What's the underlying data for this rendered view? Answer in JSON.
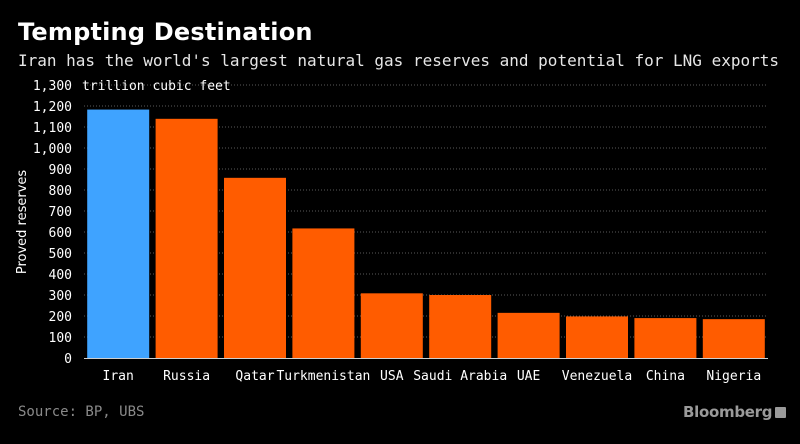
{
  "header": {
    "title": "Tempting Destination",
    "subtitle": "Iran has the world's largest natural gas reserves and potential for LNG exports"
  },
  "footer": {
    "source": "Source: BP, UBS",
    "brand": "Bloomberg"
  },
  "colors": {
    "highlight": "#3fa3ff",
    "bar": "#ff5c00",
    "grid": "#5a5a5a",
    "background": "#000000"
  },
  "chart_data": {
    "type": "bar",
    "ylabel": "Proved reserves",
    "unit_label": "trillion cubic feet",
    "ylim": [
      0,
      1300
    ],
    "yticks": [
      0,
      100,
      200,
      300,
      400,
      500,
      600,
      700,
      800,
      900,
      1000,
      1100,
      1200,
      1300
    ],
    "ytick_labels": [
      "0",
      "100",
      "200",
      "300",
      "400",
      "500",
      "600",
      "700",
      "800",
      "900",
      "1,000",
      "1,100",
      "1,200",
      "1,300"
    ],
    "grid": true,
    "categories": [
      "Iran",
      "Russia",
      "Qatar",
      "Turkmenistan",
      "USA",
      "Saudi Arabia",
      "UAE",
      "Venezuela",
      "China",
      "Nigeria"
    ],
    "values": [
      1183,
      1139,
      858,
      617,
      308,
      300,
      215,
      198,
      190,
      185
    ],
    "highlight_index": 0
  }
}
